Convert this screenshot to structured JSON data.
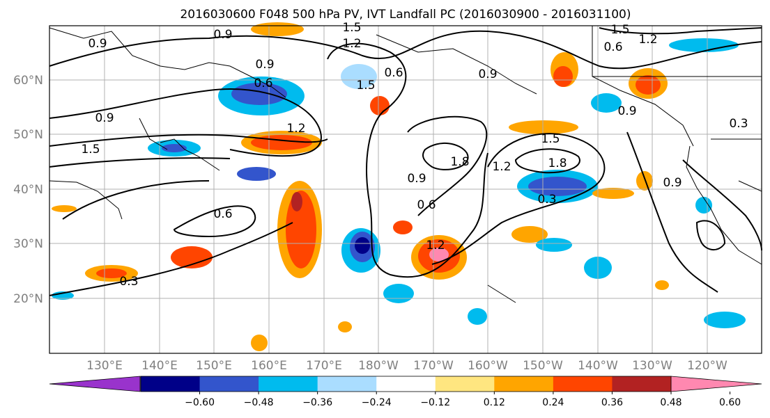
{
  "title": "2016030600 F048 500 hPa PV, IVT Landfall PC (2016030900 - 2016031100)",
  "map": {
    "lon_labels": [
      "130°E",
      "140°E",
      "150°E",
      "160°E",
      "170°E",
      "180°W",
      "170°W",
      "160°W",
      "150°W",
      "140°W",
      "130°W",
      "120°W"
    ],
    "lat_labels": [
      "60°N",
      "50°N",
      "40°N",
      "30°N",
      "20°N"
    ],
    "contour_labels": [
      "0.9",
      "0.9",
      "0.9",
      "0.6",
      "1.2",
      "1.5",
      "1.2",
      "0.9",
      "1.5",
      "0.6",
      "1.2",
      "0.6",
      "0.9",
      "0.6",
      "1.5",
      "1.5",
      "1.8",
      "1.5",
      "1.2",
      "1.8",
      "0.9",
      "0.3",
      "0.3",
      "0.6",
      "0.9",
      "1.2",
      "0.3",
      "0.9"
    ],
    "colors": {
      "land_outline": "#000000",
      "grid": "#b0b0b0"
    }
  },
  "colorbar": {
    "tick_labels": [
      "−0.60",
      "−0.48",
      "−0.36",
      "−0.24",
      "−0.12",
      "0.12",
      "0.24",
      "0.36",
      "0.48",
      "0.60"
    ],
    "colors": [
      "#9933cc",
      "#000088",
      "#3355cc",
      "#00bbee",
      "#aaddff",
      "#ffffff",
      "#ffe680",
      "#ffa500",
      "#ff4500",
      "#b22222",
      "#ff88b0"
    ]
  }
}
